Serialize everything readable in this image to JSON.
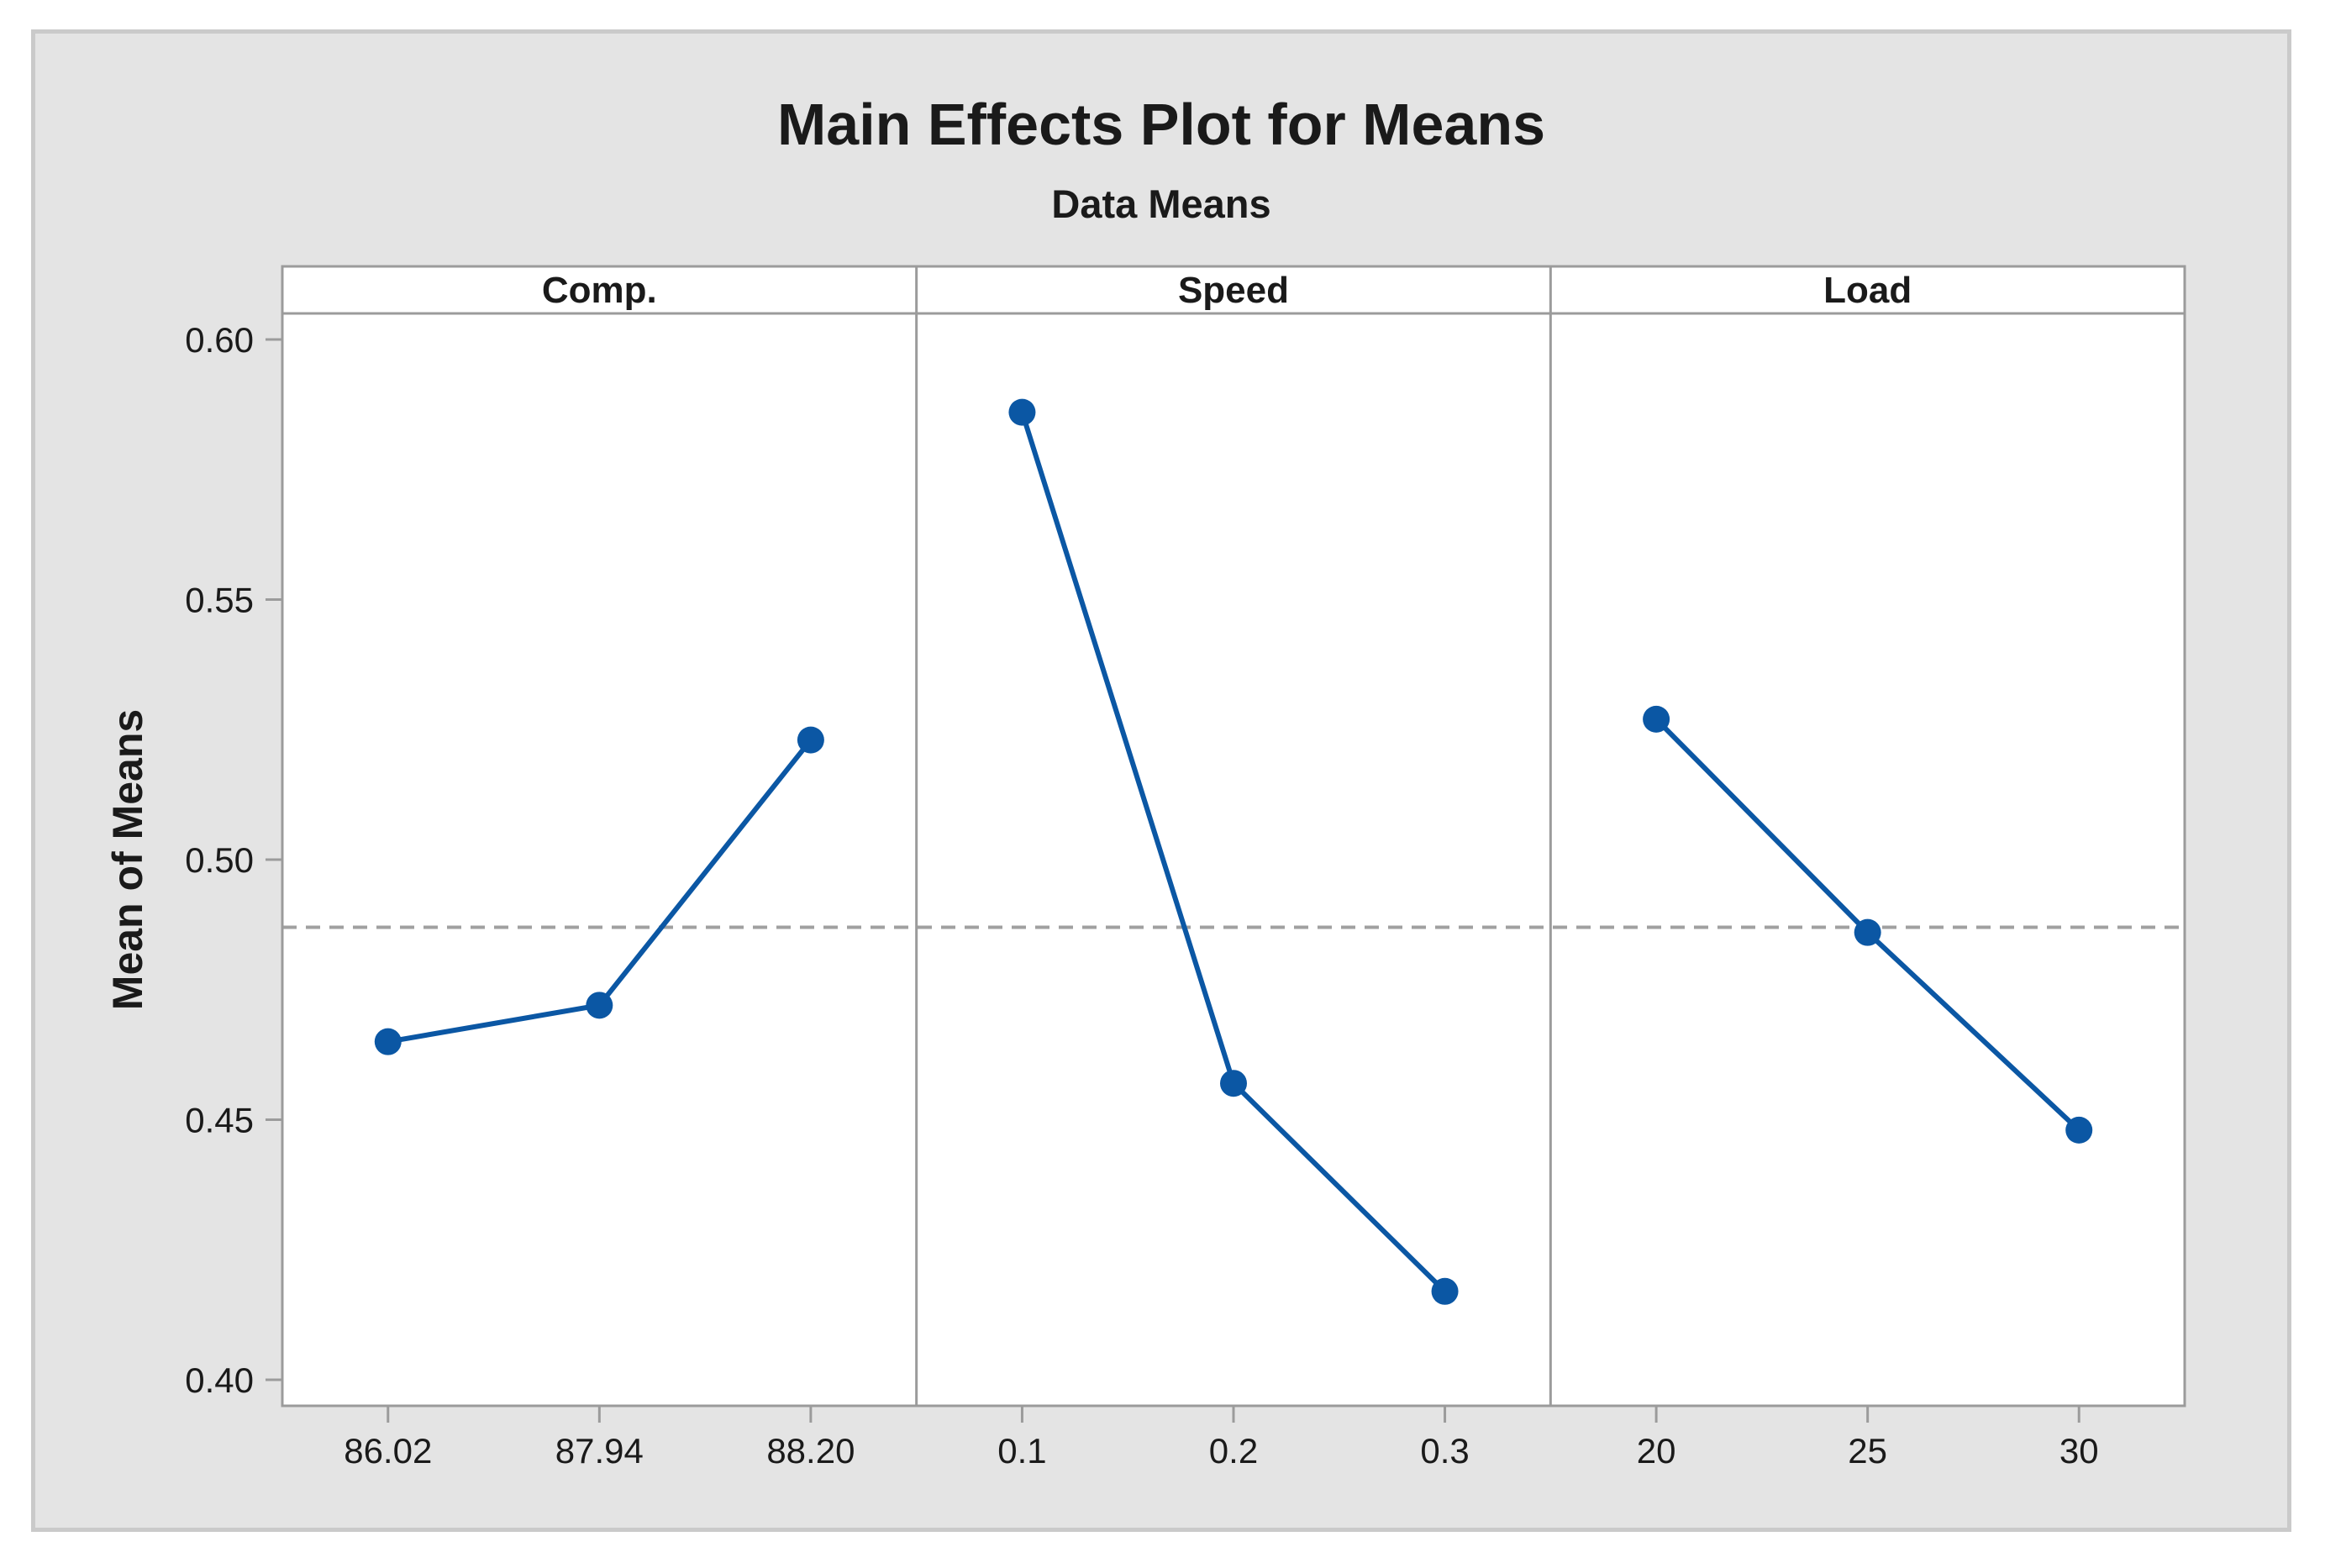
{
  "title": "Main Effects Plot for Means",
  "subtitle": "Data Means",
  "chart_data": {
    "type": "line",
    "title": "Main Effects Plot for Means",
    "subtitle": "Data Means",
    "ylabel": "Mean of Means",
    "xlabel": "",
    "ylim": [
      0.395,
      0.605
    ],
    "yticks": [
      "0.40",
      "0.45",
      "0.50",
      "0.55",
      "0.60"
    ],
    "grid": false,
    "legend_position": "none",
    "reference_line_mean": 0.487,
    "panels": [
      {
        "label": "Comp.",
        "categories": [
          "86.02",
          "87.94",
          "88.20"
        ],
        "values": [
          0.465,
          0.472,
          0.523
        ]
      },
      {
        "label": "Speed",
        "categories": [
          "0.1",
          "0.2",
          "0.3"
        ],
        "values": [
          0.586,
          0.457,
          0.417
        ]
      },
      {
        "label": "Load",
        "categories": [
          "20",
          "25",
          "30"
        ],
        "values": [
          0.527,
          0.486,
          0.448
        ]
      }
    ],
    "colors": {
      "series": "#0B57A4",
      "reference_line": "#A0A0A0",
      "frame": "#9B9B9B",
      "figure_background": "#E4E4E4",
      "figure_border": "#CACACA",
      "plot_background": "#FFFFFF",
      "text": "#1A1A1A"
    }
  }
}
